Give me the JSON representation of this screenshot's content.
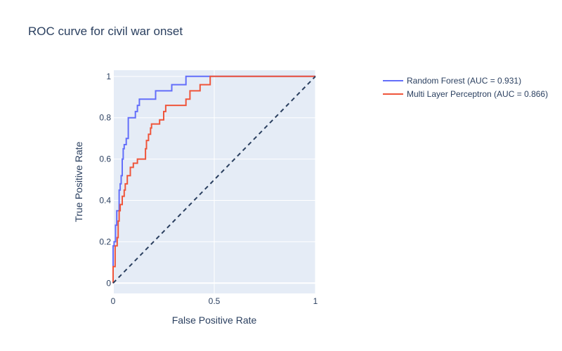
{
  "chart_data": {
    "type": "line",
    "title": "ROC curve for civil war onset",
    "xlabel": "False Positive Rate",
    "ylabel": "True Positive Rate",
    "xlim": [
      0,
      1
    ],
    "ylim": [
      -0.05,
      1.03
    ],
    "x_ticks": [
      0,
      0.5,
      1
    ],
    "x_tick_labels": [
      "0",
      "0.5",
      "1"
    ],
    "y_ticks": [
      0,
      0.2,
      0.4,
      0.6,
      0.8,
      1
    ],
    "y_tick_labels": [
      "0",
      "0.2",
      "0.4",
      "0.6",
      "0.8",
      "1"
    ],
    "grid": true,
    "legend_position": "top-right",
    "series": [
      {
        "name": "Random Forest (AUC = 0.931)",
        "color": "#636efa",
        "x": [
          0,
          0,
          0.005,
          0.005,
          0.012,
          0.012,
          0.018,
          0.018,
          0.03,
          0.03,
          0.035,
          0.035,
          0.04,
          0.04,
          0.045,
          0.045,
          0.05,
          0.05,
          0.055,
          0.055,
          0.065,
          0.065,
          0.075,
          0.075,
          0.11,
          0.11,
          0.12,
          0.12,
          0.13,
          0.13,
          0.21,
          0.21,
          0.29,
          0.29,
          0.36,
          0.36,
          1
        ],
        "y": [
          0,
          0.18,
          0.18,
          0.2,
          0.2,
          0.28,
          0.28,
          0.35,
          0.35,
          0.45,
          0.45,
          0.48,
          0.48,
          0.52,
          0.52,
          0.6,
          0.6,
          0.65,
          0.65,
          0.67,
          0.67,
          0.7,
          0.7,
          0.8,
          0.8,
          0.83,
          0.83,
          0.86,
          0.86,
          0.89,
          0.89,
          0.93,
          0.93,
          0.96,
          0.96,
          1.0,
          1.0
        ]
      },
      {
        "name": "Multi Layer Perceptron (AUC = 0.866)",
        "color": "#ef553b",
        "x": [
          0,
          0,
          0.01,
          0.01,
          0.02,
          0.02,
          0.025,
          0.025,
          0.03,
          0.03,
          0.035,
          0.035,
          0.045,
          0.045,
          0.055,
          0.055,
          0.06,
          0.06,
          0.07,
          0.07,
          0.085,
          0.085,
          0.1,
          0.1,
          0.12,
          0.12,
          0.16,
          0.16,
          0.165,
          0.165,
          0.175,
          0.175,
          0.185,
          0.185,
          0.19,
          0.19,
          0.23,
          0.23,
          0.25,
          0.25,
          0.26,
          0.26,
          0.27,
          0.27,
          0.36,
          0.36,
          0.38,
          0.38,
          0.43,
          0.43,
          0.48,
          0.48,
          1
        ],
        "y": [
          0,
          0.08,
          0.08,
          0.18,
          0.18,
          0.22,
          0.22,
          0.3,
          0.3,
          0.35,
          0.35,
          0.38,
          0.38,
          0.42,
          0.42,
          0.45,
          0.45,
          0.48,
          0.48,
          0.52,
          0.52,
          0.56,
          0.56,
          0.58,
          0.58,
          0.6,
          0.6,
          0.65,
          0.65,
          0.69,
          0.69,
          0.72,
          0.72,
          0.75,
          0.75,
          0.77,
          0.77,
          0.79,
          0.79,
          0.83,
          0.83,
          0.86,
          0.86,
          0.86,
          0.86,
          0.89,
          0.89,
          0.93,
          0.93,
          0.96,
          0.96,
          1.0,
          1.0
        ]
      },
      {
        "name": "",
        "color": "#2a3f5f",
        "dashed": true,
        "show_in_legend": false,
        "x": [
          0,
          1
        ],
        "y": [
          0,
          1
        ]
      }
    ]
  }
}
